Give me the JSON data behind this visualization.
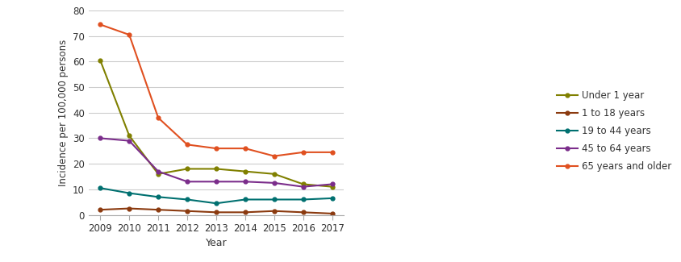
{
  "years": [
    2009,
    2010,
    2011,
    2012,
    2013,
    2014,
    2015,
    2016,
    2017
  ],
  "series": {
    "Under 1 year": {
      "values": [
        60.5,
        31,
        16,
        18,
        18,
        17,
        16,
        12,
        11
      ],
      "color": "#808000",
      "marker": "o"
    },
    "1 to 18 years": {
      "values": [
        2,
        2.5,
        2,
        1.5,
        1,
        1,
        1.5,
        1,
        0.5
      ],
      "color": "#8B3A0F",
      "marker": "o"
    },
    "19 to 44 years": {
      "values": [
        10.5,
        8.5,
        7,
        6,
        4.5,
        6,
        6,
        6,
        6.5
      ],
      "color": "#007070",
      "marker": "o"
    },
    "45 to 64 years": {
      "values": [
        30,
        29,
        17,
        13,
        13,
        13,
        12.5,
        11,
        12
      ],
      "color": "#7B2D8B",
      "marker": "o"
    },
    "65 years and older": {
      "values": [
        74.5,
        70.5,
        38,
        27.5,
        26,
        26,
        23,
        24.5,
        24.5
      ],
      "color": "#E05020",
      "marker": "o"
    }
  },
  "xlabel": "Year",
  "ylabel": "Incidence per 100,000 persons",
  "ylim": [
    0,
    80
  ],
  "yticks": [
    0,
    10,
    20,
    30,
    40,
    50,
    60,
    70,
    80
  ],
  "xticks": [
    2009,
    2010,
    2011,
    2012,
    2013,
    2014,
    2015,
    2016,
    2017
  ],
  "grid_color": "#cccccc",
  "background_color": "#ffffff",
  "legend_order": [
    "Under 1 year",
    "1 to 18 years",
    "19 to 44 years",
    "45 to 64 years",
    "65 years and older"
  ]
}
